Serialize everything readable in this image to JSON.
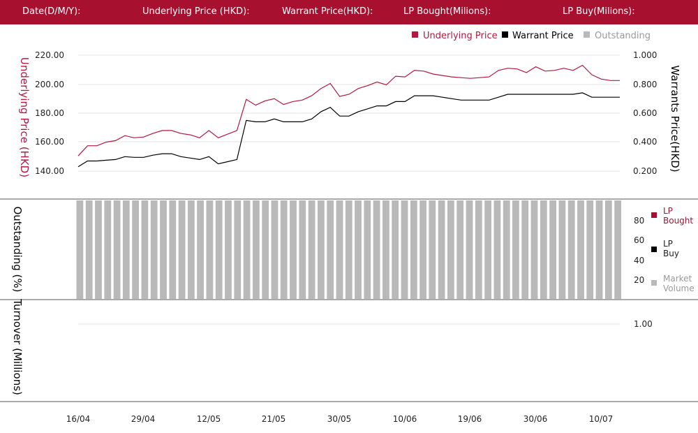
{
  "header": {
    "date_label": "Date(D/M/Y):",
    "underlying_label": "Underlying Price (HKD):",
    "warrant_label": "Warrant  Price(HKD):",
    "lp_bought_label": "LP Bought(Milions):",
    "lp_buy_label": "LP Buy(Milions):"
  },
  "colors": {
    "header_bg": "#a8102f",
    "underlying": "#b5173f",
    "warrant": "#000000",
    "outstanding": "#b9b9b9"
  },
  "chart_data": [
    {
      "type": "line",
      "legend": {
        "placement": "top-right",
        "items": [
          "Underlying Price",
          "Warrant  Price",
          "Outstanding"
        ]
      },
      "ylabel": "Underlying Price (HKD)",
      "y2label": "Warrants  Price(HKD)",
      "yticks": [
        "220.00",
        "200.00",
        "180.00",
        "160.00",
        "140.00"
      ],
      "y2ticks": [
        "1.000",
        "0.800",
        "0.600",
        "0.400",
        "0.200"
      ],
      "ylim": [
        140,
        220
      ],
      "y2lim": [
        0.2,
        1.0
      ],
      "grid": true,
      "series": [
        {
          "name": "Underlying Price",
          "axis": "left",
          "values": [
            150.5,
            157.5,
            157.5,
            160,
            161,
            164.5,
            163,
            163.5,
            166,
            168,
            168,
            166,
            165,
            163,
            168,
            163,
            165.5,
            168,
            189.5,
            185.5,
            188.5,
            190,
            186,
            188,
            189,
            192,
            197,
            200.5,
            191.5,
            193,
            197,
            199,
            201.5,
            199.5,
            205.5,
            205,
            209.5,
            209,
            207,
            206,
            205,
            204.5,
            204,
            204.5,
            205,
            209.5,
            211,
            210.5,
            208,
            212,
            209,
            209.5,
            211,
            209.5,
            213,
            206.5,
            203.5,
            202.5,
            202.5
          ]
        },
        {
          "name": "Warrant  Price",
          "axis": "right",
          "values": [
            0.23,
            0.27,
            0.27,
            0.275,
            0.28,
            0.3,
            0.295,
            0.295,
            0.31,
            0.32,
            0.32,
            0.3,
            0.29,
            0.28,
            0.3,
            0.25,
            0.265,
            0.28,
            0.55,
            0.54,
            0.54,
            0.56,
            0.54,
            0.54,
            0.54,
            0.56,
            0.61,
            0.64,
            0.58,
            0.58,
            0.61,
            0.63,
            0.65,
            0.65,
            0.68,
            0.68,
            0.72,
            0.72,
            0.72,
            0.71,
            0.7,
            0.69,
            0.69,
            0.69,
            0.69,
            0.71,
            0.73,
            0.73,
            0.73,
            0.73,
            0.73,
            0.73,
            0.73,
            0.73,
            0.74,
            0.71,
            0.71,
            0.71,
            0.71
          ]
        }
      ]
    },
    {
      "type": "bar",
      "ylabel": "Outstanding (%)",
      "yticks": [
        "80",
        "60",
        "40",
        "20"
      ],
      "legend": {
        "placement": "right",
        "items": [
          "LP Bought",
          "LP Buy",
          "Market Volume"
        ]
      },
      "series": [
        {
          "name": "Outstanding",
          "bar_count": 59,
          "value": 100
        }
      ]
    },
    {
      "type": "bar",
      "ylabel": "Turnover (Millions)",
      "yticks": [
        "1.00"
      ],
      "series": []
    }
  ],
  "x_axis": {
    "tick_labels": [
      "16/04",
      "29/04",
      "12/05",
      "21/05",
      "30/05",
      "10/06",
      "19/06",
      "30/06",
      "10/07"
    ]
  }
}
